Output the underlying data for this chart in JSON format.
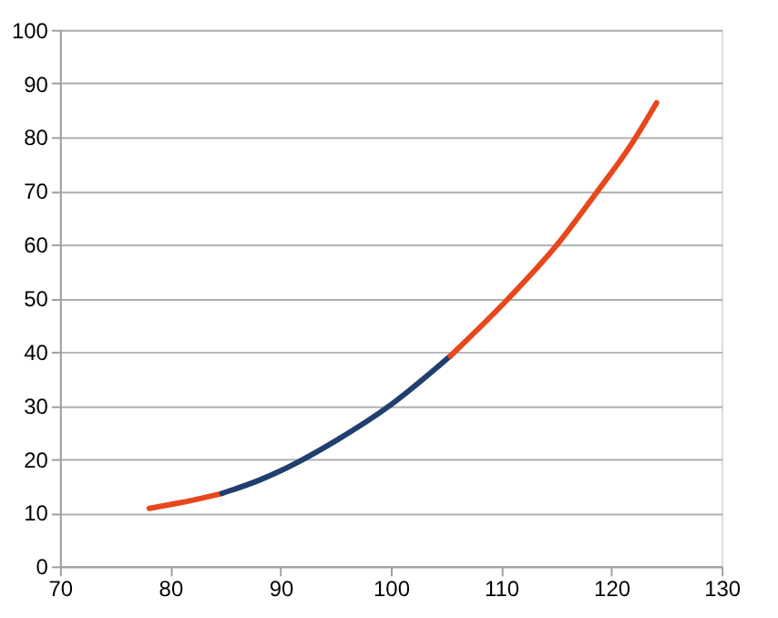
{
  "chart_data": {
    "type": "line",
    "xlim": [
      70,
      130
    ],
    "ylim": [
      0,
      100
    ],
    "xticks": [
      70,
      80,
      90,
      100,
      110,
      120,
      130
    ],
    "yticks": [
      0,
      10,
      20,
      30,
      40,
      50,
      60,
      70,
      80,
      90,
      100
    ],
    "grid": "y",
    "legend": false,
    "marker": "none",
    "line_style": "solid",
    "series": [
      {
        "color": "#e8471c",
        "x": [
          78.1,
          81,
          84.7
        ],
        "values": [
          10.8,
          11.9,
          13.6
        ]
      },
      {
        "color": "#1f3f6e",
        "x": [
          84.7,
          88,
          90,
          95,
          100,
          105.4
        ],
        "values": [
          13.6,
          16.0,
          17.8,
          23.4,
          30.1,
          39.2
        ]
      },
      {
        "color": "#e8471c",
        "x": [
          105.4,
          110.7,
          115.1,
          118.6,
          121.6,
          124.1
        ],
        "values": [
          39.2,
          50,
          60,
          69.5,
          78,
          86.4
        ]
      }
    ]
  }
}
